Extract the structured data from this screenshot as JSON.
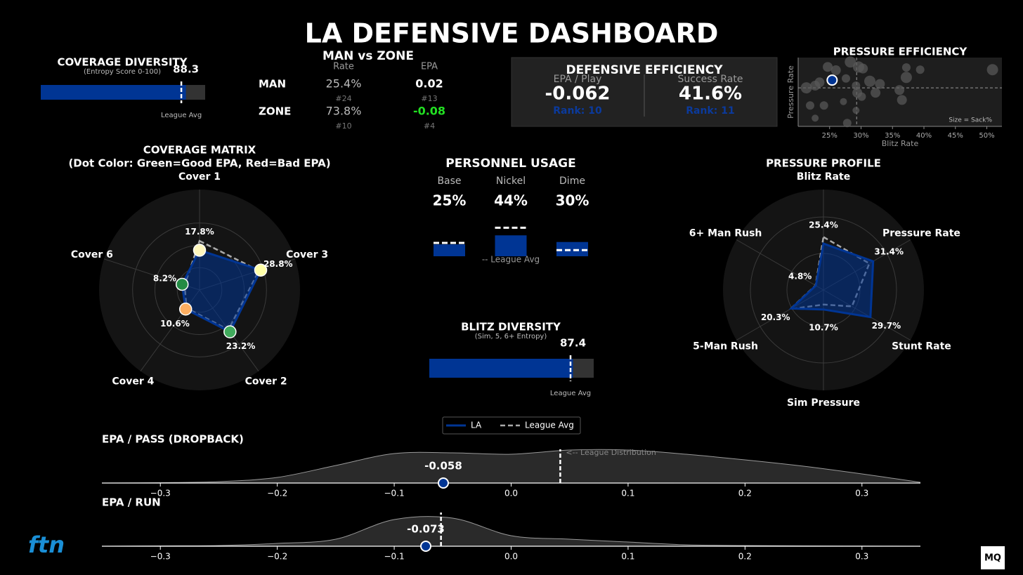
{
  "title": "LA DEFENSIVE DASHBOARD",
  "man_vs_zone": {
    "title": "MAN vs ZONE",
    "columns": [
      "Rate",
      "EPA"
    ],
    "rows": [
      {
        "label": "MAN",
        "rate": "25.4%",
        "rate_rank": "#24",
        "epa": "0.02",
        "epa_rank": "#13",
        "epa_color": "#ffffff"
      },
      {
        "label": "ZONE",
        "rate": "73.8%",
        "rate_rank": "#10",
        "epa": "-0.08",
        "epa_rank": "#4",
        "epa_color": "#22e022"
      }
    ]
  },
  "efficiency": {
    "title": "DEFENSIVE EFFICIENCY",
    "metrics": [
      {
        "label": "EPA / Play",
        "value": "-0.062",
        "rank": "Rank: 10"
      },
      {
        "label": "Success Rate",
        "value": "41.6%",
        "rank": "Rank: 11"
      }
    ]
  },
  "logos": [
    "ftn",
    "MQ"
  ],
  "chart_data": [
    {
      "type": "bullet",
      "title": "COVERAGE DIVERSITY",
      "subtitle": "(Entropy Score 0-100)",
      "value": 88.3,
      "league_avg": 85.5,
      "avg_label": "League Avg",
      "xlim": [
        0,
        100
      ],
      "color": "#003594"
    },
    {
      "type": "scatter",
      "title": "PRESSURE EFFICIENCY",
      "x_label": "Blitz Rate",
      "y_label": "Pressure Rate",
      "annotation": "Size = Sack%",
      "xlim": [
        20,
        52.4
      ],
      "ylim": [
        23,
        35.5
      ],
      "xticks": [
        {
          "value": 25,
          "label": "25%"
        },
        {
          "value": 30,
          "label": "30%"
        },
        {
          "value": 35,
          "label": "35%"
        },
        {
          "value": 40,
          "label": "40%"
        },
        {
          "value": 45,
          "label": "45%"
        },
        {
          "value": 50,
          "label": "50%"
        }
      ],
      "x_ref": 29.3,
      "y_ref": 30,
      "series": [
        {
          "color": "#5a5a5a",
          "x": [
            21.3,
            22.7,
            23.4,
            21.9,
            24.1,
            22.7,
            24.7,
            26.0,
            27.6,
            28.3,
            29.6,
            30.3,
            29.2,
            29.4,
            30.1,
            31.4,
            33.0,
            32.3,
            27.2,
            29.2,
            27.8,
            36.1,
            36.5,
            37.2,
            37.2,
            39.4,
            50.9
          ],
          "values": [
            30.0,
            30.4,
            31.0,
            26.8,
            26.8,
            24.5,
            33.8,
            33.2,
            31.7,
            34.7,
            33.8,
            33.5,
            30.4,
            29.1,
            28.4,
            31.2,
            30.7,
            29.1,
            27.5,
            25.9,
            23.6,
            29.6,
            27.8,
            33.7,
            31.9,
            33.3,
            33.3
          ],
          "sizes": [
            8,
            7,
            7,
            6,
            6,
            5,
            7,
            7,
            6,
            8,
            8,
            7,
            6,
            7,
            6,
            8,
            7,
            7,
            5,
            5,
            6,
            7,
            7,
            6,
            8,
            6,
            8
          ]
        },
        {
          "color": "#003594",
          "x": [
            25.4
          ],
          "values": [
            31.4
          ],
          "sizes": [
            7
          ]
        }
      ]
    },
    {
      "type": "radar",
      "title": "COVERAGE MATRIX",
      "subtitle": "(Dot Color: Green=Good EPA, Red=Bad EPA)",
      "categories": [
        "Cover 1",
        "Cover 3",
        "Cover 2",
        "Cover 4",
        "Cover 6"
      ],
      "rlim": [
        0,
        45
      ],
      "rticks": [
        10,
        20,
        30
      ],
      "series": [
        {
          "name": "LA",
          "color": "#003594",
          "values": [
            17.8,
            28.8,
            23.2,
            10.6,
            8.2
          ],
          "value_labels": [
            "17.8%",
            "28.8%",
            "23.2%",
            "10.6%",
            "8.2%"
          ],
          "point_colors": [
            "#fff7bc",
            "#ffffa8",
            "#41ab5d",
            "#fdae61",
            "#238b45"
          ]
        },
        {
          "name": "League Avg",
          "color": "#aaaaaa",
          "values": [
            22,
            28,
            22,
            10,
            7
          ]
        }
      ]
    },
    {
      "type": "bar",
      "title": "PERSONNEL USAGE",
      "categories": [
        "Base",
        "Nickel",
        "Dime"
      ],
      "values": [
        25,
        44,
        30
      ],
      "value_labels": [
        "25%",
        "44%",
        "30%"
      ],
      "league_avg": [
        28,
        60,
        13
      ],
      "note": "-- League Avg",
      "ylim": [
        0,
        65
      ],
      "color": "#003594"
    },
    {
      "type": "bullet",
      "title": "BLITZ DIVERSITY",
      "subtitle": "(Sim, 5, 6+ Entropy)",
      "value": 87.4,
      "league_avg": 85.9,
      "avg_label": "League Avg",
      "xlim": [
        0,
        100
      ],
      "color": "#003594"
    },
    {
      "type": "radar",
      "title": "PRESSURE PROFILE",
      "categories": [
        "Blitz Rate",
        "Pressure Rate",
        "Stunt Rate",
        "Sim Pressure",
        "5-Man Rush",
        "6+ Man Rush"
      ],
      "rlim": [
        0,
        55
      ],
      "rticks": [
        20,
        40
      ],
      "series": [
        {
          "color": "#003594",
          "values": [
            25.4,
            31.4,
            29.7,
            10.7,
            20.3,
            4.8
          ],
          "value_labels": [
            "25.4%",
            "31.4%",
            "29.7%",
            "10.7%",
            "20.3%",
            "4.8%"
          ]
        },
        {
          "color": "#aaaaaa",
          "values": [
            29,
            29,
            18,
            8,
            21,
            5
          ]
        }
      ]
    },
    {
      "type": "density",
      "title": "EPA / PASS (DROPBACK)",
      "annotation": "<-- League Distribution",
      "x": [
        -0.35,
        -0.3,
        -0.25,
        -0.2,
        -0.15,
        -0.1,
        -0.05,
        0.0,
        0.05,
        0.1,
        0.15,
        0.2,
        0.25,
        0.3,
        0.35
      ],
      "values": [
        0,
        0.5,
        2,
        8,
        25,
        42,
        43,
        41,
        47,
        47,
        41,
        33,
        24,
        13,
        1
      ],
      "xlim": [
        -0.35,
        0.35
      ],
      "ylim": [
        0,
        50
      ],
      "xticks": [
        {
          "value": -0.3,
          "label": "−0.3"
        },
        {
          "value": -0.2,
          "label": "−0.2"
        },
        {
          "value": -0.1,
          "label": "−0.1"
        },
        {
          "value": 0,
          "label": "0.0"
        },
        {
          "value": 0.1,
          "label": "0.1"
        },
        {
          "value": 0.2,
          "label": "0.2"
        },
        {
          "value": 0.3,
          "label": "0.3"
        }
      ],
      "marker": -0.058,
      "reference": 0.042,
      "color": "#2a2a2a",
      "marker_color": "#003594"
    },
    {
      "type": "density",
      "title": "EPA / RUN",
      "x": [
        -0.35,
        -0.3,
        -0.25,
        -0.2,
        -0.15,
        -0.1,
        -0.05,
        0.0,
        0.05,
        0.1,
        0.15,
        0.2,
        0.25,
        0.3,
        0.35
      ],
      "values": [
        0,
        0.5,
        1,
        4,
        10,
        38,
        40,
        15,
        10,
        6,
        2,
        1,
        0.5,
        0.2,
        0
      ],
      "xlim": [
        -0.35,
        0.35
      ],
      "ylim": [
        0,
        50
      ],
      "xticks": [
        {
          "value": -0.3,
          "label": "−0.3"
        },
        {
          "value": -0.2,
          "label": "−0.2"
        },
        {
          "value": -0.1,
          "label": "−0.1"
        },
        {
          "value": 0,
          "label": "0.0"
        },
        {
          "value": 0.1,
          "label": "0.1"
        },
        {
          "value": 0.2,
          "label": "0.2"
        },
        {
          "value": 0.3,
          "label": "0.3"
        }
      ],
      "marker": -0.073,
      "reference": -0.06,
      "color": "#2a2a2a",
      "marker_color": "#003594"
    }
  ]
}
